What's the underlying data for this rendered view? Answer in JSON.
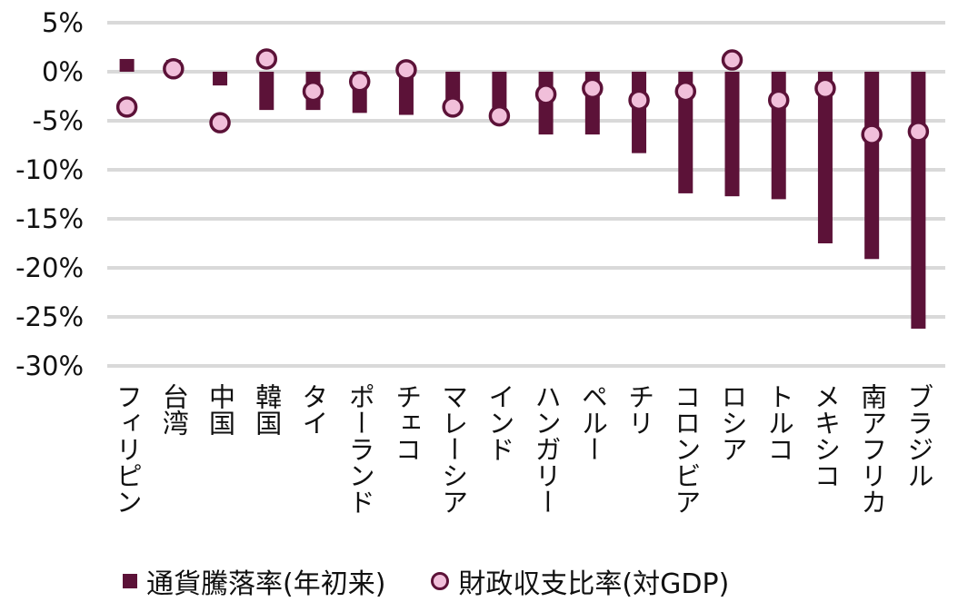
{
  "chart_data": {
    "type": "bar",
    "categories": [
      "フィリピン",
      "台湾",
      "中国",
      "韓国",
      "タイ",
      "ポーランド",
      "チェコ",
      "マレーシア",
      "インド",
      "ハンガリー",
      "ペルー",
      "チリ",
      "コロンビア",
      "ロシア",
      "トルコ",
      "メキシコ",
      "南アフリカ",
      "ブラジル"
    ],
    "series": [
      {
        "name": "通貨騰落率(年初来)",
        "kind": "bar",
        "color": "#5c1238",
        "values": [
          1.3,
          1.2,
          -1.4,
          -3.9,
          -3.9,
          -4.2,
          -4.4,
          -4.4,
          -4.4,
          -6.4,
          -6.4,
          -8.3,
          -12.4,
          -12.7,
          -13.0,
          -17.5,
          -19.1,
          -26.2
        ]
      },
      {
        "name": "財政収支比率(対GDP)",
        "kind": "marker",
        "color": "#f1bfda",
        "stroke": "#5c1238",
        "values": [
          -3.6,
          0.3,
          -5.2,
          1.3,
          -2.0,
          -1.0,
          0.2,
          -3.6,
          -4.5,
          -2.3,
          -1.7,
          -2.9,
          -2.0,
          1.2,
          -2.9,
          -1.7,
          -6.4,
          -6.1
        ]
      }
    ],
    "yticks": [
      "5%",
      "0%",
      "-5%",
      "-10%",
      "-15%",
      "-20%",
      "-25%",
      "-30%"
    ],
    "ytick_values": [
      5,
      0,
      -5,
      -10,
      -15,
      -20,
      -25,
      -30
    ],
    "ylim": [
      -30,
      5
    ],
    "grid": true,
    "legend_position": "bottom"
  }
}
